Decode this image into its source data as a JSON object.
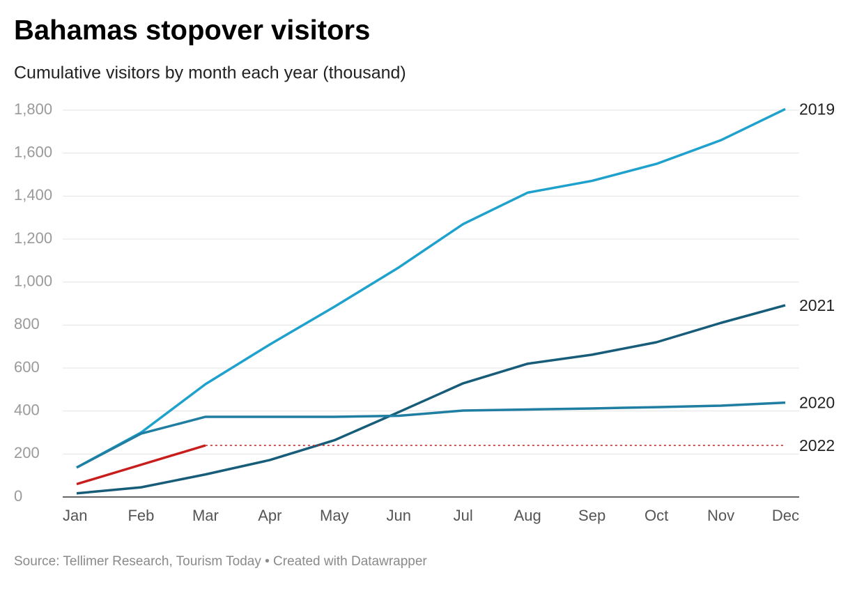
{
  "chart_data": {
    "type": "line",
    "title": "Bahamas stopover visitors",
    "subtitle": "Cumulative visitors by month each year (thousand)",
    "source": "Source: Tellimer Research, Tourism Today • Created with Datawrapper",
    "categories": [
      "Jan",
      "Feb",
      "Mar",
      "Apr",
      "May",
      "Jun",
      "Jul",
      "Aug",
      "Sep",
      "Oct",
      "Nov",
      "Dec"
    ],
    "series": [
      {
        "name": "2019",
        "color": "#1ea1cc",
        "values": [
          137,
          300,
          525,
          710,
          885,
          1068,
          1270,
          1416,
          1471,
          1550,
          1660,
          1805
        ]
      },
      {
        "name": "2021",
        "color": "#175c78",
        "values": [
          17,
          45,
          105,
          172,
          264,
          395,
          529,
          620,
          662,
          720,
          810,
          892
        ]
      },
      {
        "name": "2020",
        "color": "#1f7ea1",
        "values": [
          137,
          295,
          373,
          373,
          373,
          378,
          402,
          407,
          412,
          418,
          425,
          439
        ]
      },
      {
        "name": "2022",
        "color": "#c71e1d",
        "values": [
          60,
          150,
          240,
          null,
          null,
          null,
          null,
          null,
          null,
          null,
          null,
          null
        ]
      }
    ],
    "ylim": [
      0,
      1800
    ],
    "yticks": [
      0,
      200,
      400,
      600,
      800,
      {
        "value": 1000,
        "label": "1,000"
      },
      {
        "value": 1200,
        "label": "1,200"
      },
      {
        "value": 1400,
        "label": "1,400"
      },
      {
        "value": 1600,
        "label": "1,600"
      },
      {
        "value": 1800,
        "label": "1,800"
      }
    ],
    "grid": true
  }
}
